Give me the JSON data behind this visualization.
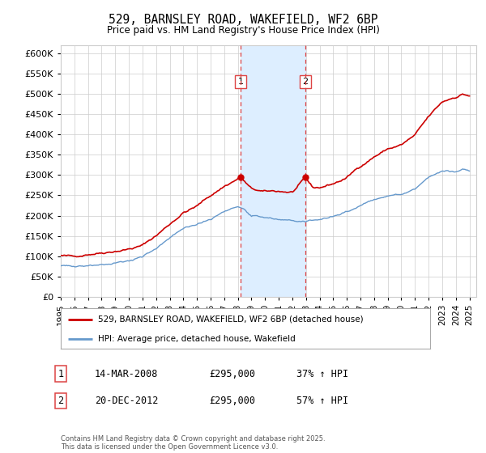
{
  "title": "529, BARNSLEY ROAD, WAKEFIELD, WF2 6BP",
  "subtitle": "Price paid vs. HM Land Registry's House Price Index (HPI)",
  "legend_line1": "529, BARNSLEY ROAD, WAKEFIELD, WF2 6BP (detached house)",
  "legend_line2": "HPI: Average price, detached house, Wakefield",
  "transaction1_label": "1",
  "transaction1_date": "14-MAR-2008",
  "transaction1_price": "£295,000",
  "transaction1_hpi": "37% ↑ HPI",
  "transaction2_label": "2",
  "transaction2_date": "20-DEC-2012",
  "transaction2_price": "£295,000",
  "transaction2_hpi": "57% ↑ HPI",
  "footer": "Contains HM Land Registry data © Crown copyright and database right 2025.\nThis data is licensed under the Open Government Licence v3.0.",
  "line_color_red": "#cc0000",
  "line_color_blue": "#6699cc",
  "shading_color": "#ddeeff",
  "vline_color": "#dd4444",
  "background_color": "#ffffff",
  "grid_color": "#cccccc",
  "ylim_min": 0,
  "ylim_max": 620000,
  "year_start": 1995,
  "year_end": 2025,
  "transaction1_year": 2008.2,
  "transaction2_year": 2012.95
}
